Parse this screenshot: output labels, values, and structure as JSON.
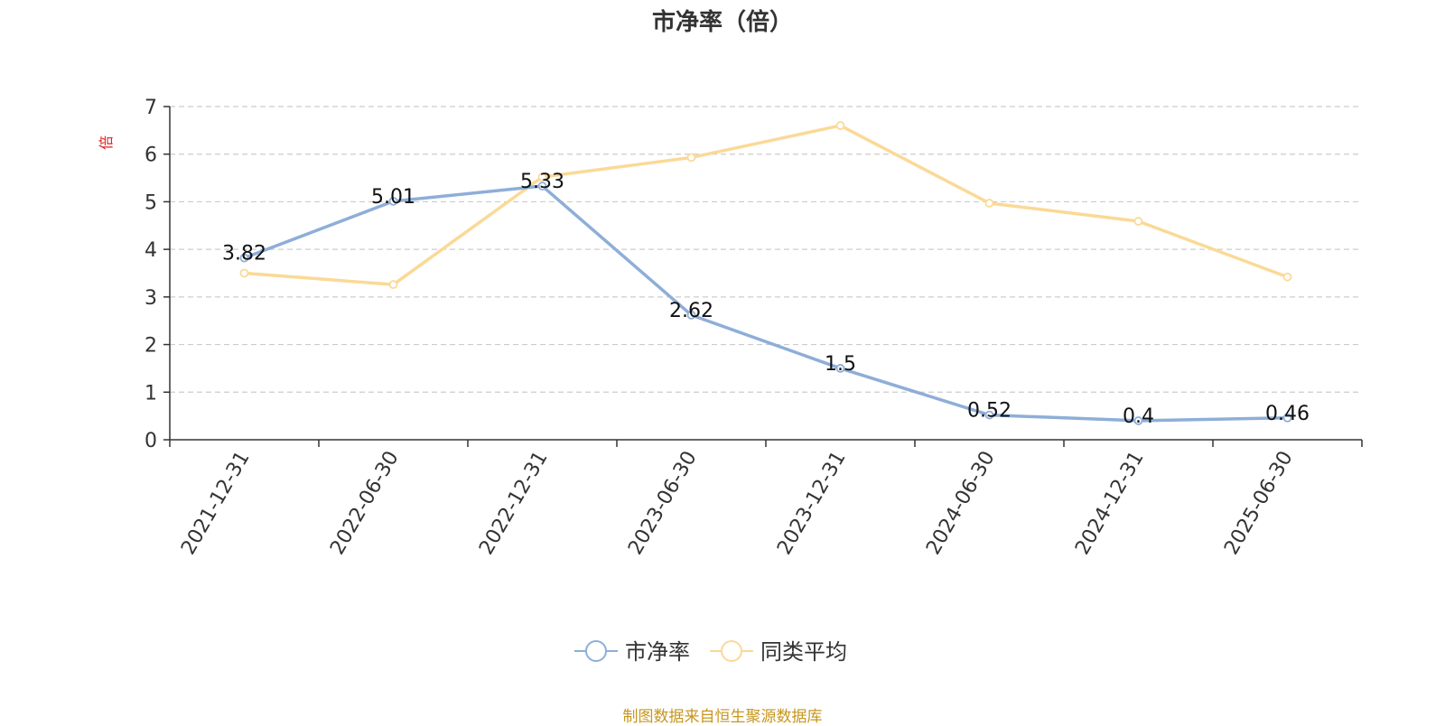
{
  "title": "市净率（倍）",
  "source": "制图数据来自恒生聚源数据库",
  "chart_data": {
    "type": "line",
    "title": "市净率（倍）",
    "ylabel": "倍",
    "xlabel": "",
    "categories": [
      "2021-12-31",
      "2022-06-30",
      "2022-12-31",
      "2023-06-30",
      "2023-12-31",
      "2024-06-30",
      "2024-12-31",
      "2025-06-30"
    ],
    "ylim": [
      0,
      7
    ],
    "yticks": [
      0,
      1,
      2,
      3,
      4,
      5,
      6,
      7
    ],
    "grid": true,
    "legend_position": "bottom",
    "series": [
      {
        "name": "市净率",
        "color": "#8eaed8",
        "values": [
          3.82,
          5.01,
          5.33,
          2.62,
          1.5,
          0.52,
          0.4,
          0.46
        ],
        "labels": [
          "3.82",
          "5.01",
          "5.33",
          "2.62",
          "1.5",
          "0.52",
          "0.4",
          "0.46"
        ]
      },
      {
        "name": "同类平均",
        "color": "#fbd996",
        "values": [
          3.5,
          3.26,
          5.52,
          5.93,
          6.6,
          4.97,
          4.59,
          3.42
        ]
      }
    ]
  }
}
